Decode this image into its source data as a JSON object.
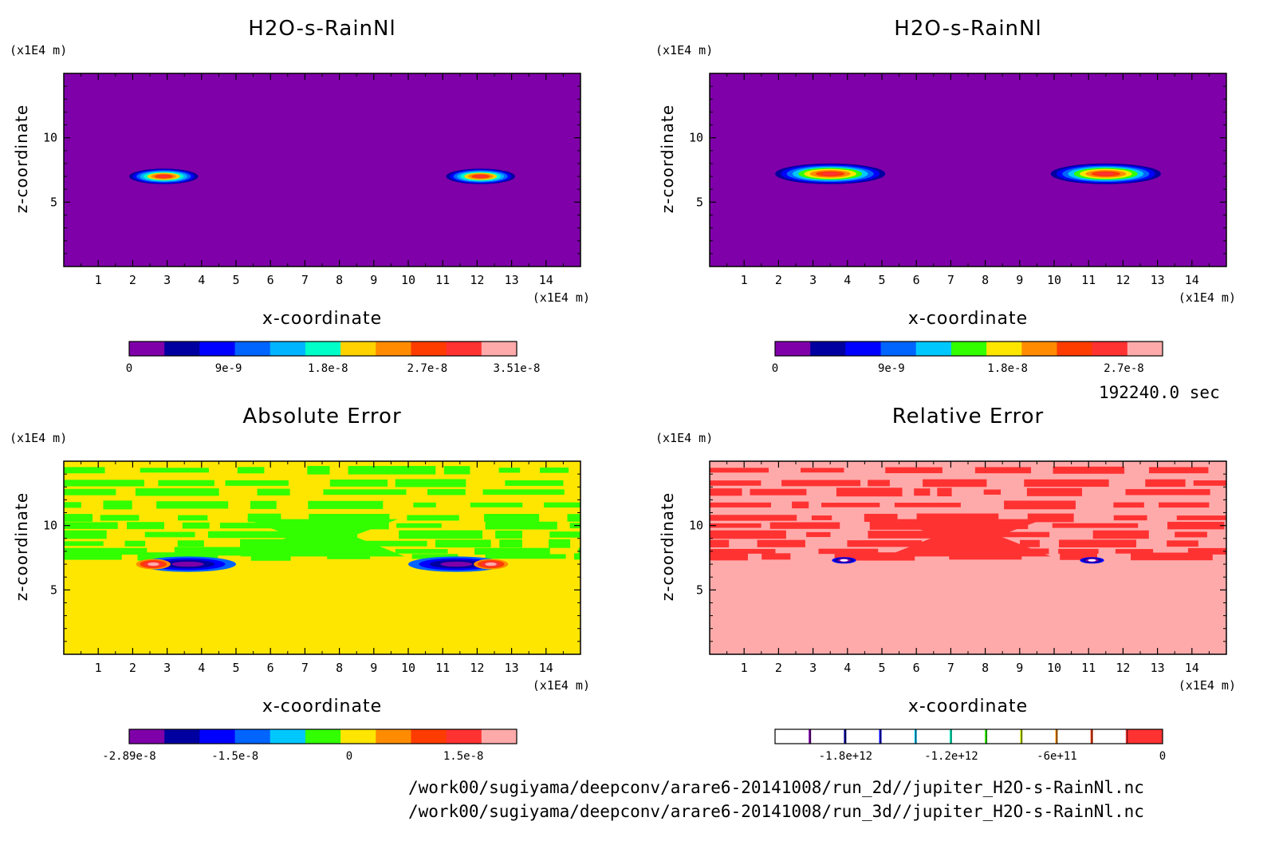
{
  "time_label": "192240.0 sec",
  "file_paths": [
    "/work00/sugiyama/deepconv/arare6-20141008/run_2d//jupiter_H2O-s-RainNl.nc",
    "/work00/sugiyama/deepconv/arare6-20141008/run_3d//jupiter_H2O-s-RainNl.nc"
  ],
  "chart_data": [
    {
      "type": "heatmap",
      "title": "H2O-s-RainNl",
      "xlabel": "x-coordinate",
      "ylabel": "z-coordinate",
      "x_unit": "(x1E4 m)",
      "y_unit": "(x1E4 m)",
      "xlim": [
        0,
        15
      ],
      "ylim": [
        0,
        15
      ],
      "x_ticks": [
        "1",
        "2",
        "3",
        "4",
        "5",
        "6",
        "7",
        "8",
        "9",
        "10",
        "11",
        "12",
        "13",
        "14"
      ],
      "y_ticks": [
        "5",
        "10"
      ],
      "background_color": "#7f00a9",
      "features": [
        {
          "x": 2.9,
          "z": 7.0,
          "half_width": 1.0,
          "depth": 0.6,
          "peak": 3.51e-08
        },
        {
          "x": 12.1,
          "z": 7.0,
          "half_width": 1.0,
          "depth": 0.6,
          "peak": 3.51e-08
        }
      ],
      "colorbar": {
        "colors": [
          "#7f00a9",
          "#0000a0",
          "#0000ff",
          "#0064ff",
          "#00b4ff",
          "#00ffc8",
          "#ffd200",
          "#ff8c00",
          "#ff3c00",
          "#ff3232",
          "#ffaaaa"
        ],
        "tick_labels": [
          "0",
          "9e-9",
          "1.8e-8",
          "2.7e-8",
          "3.51e-8"
        ],
        "range": [
          0,
          3.51e-08
        ]
      }
    },
    {
      "type": "heatmap",
      "title": "H2O-s-RainNl",
      "xlabel": "x-coordinate",
      "ylabel": "z-coordinate",
      "x_unit": "(x1E4 m)",
      "y_unit": "(x1E4 m)",
      "xlim": [
        0,
        15
      ],
      "ylim": [
        0,
        15
      ],
      "x_ticks": [
        "1",
        "2",
        "3",
        "4",
        "5",
        "6",
        "7",
        "8",
        "9",
        "10",
        "11",
        "12",
        "13",
        "14"
      ],
      "y_ticks": [
        "5",
        "10"
      ],
      "background_color": "#7f00a9",
      "features": [
        {
          "x": 3.5,
          "z": 7.2,
          "half_width": 1.6,
          "depth": 0.8,
          "peak": 2.9e-08
        },
        {
          "x": 11.5,
          "z": 7.2,
          "half_width": 1.6,
          "depth": 0.8,
          "peak": 2.9e-08
        }
      ],
      "colorbar": {
        "colors": [
          "#7f00a9",
          "#0000a0",
          "#0000ff",
          "#0064ff",
          "#00c8ff",
          "#32ff00",
          "#ffe600",
          "#ff8c00",
          "#ff3c00",
          "#ff3232",
          "#ffaaaa"
        ],
        "tick_labels": [
          "0",
          "9e-9",
          "1.8e-8",
          "2.7e-8"
        ],
        "range": [
          0,
          3e-08
        ]
      }
    },
    {
      "type": "heatmap",
      "title": "Absolute Error",
      "xlabel": "x-coordinate",
      "ylabel": "z-coordinate",
      "x_unit": "(x1E4 m)",
      "y_unit": "(x1E4 m)",
      "xlim": [
        0,
        15
      ],
      "ylim": [
        0,
        15
      ],
      "x_ticks": [
        "1",
        "2",
        "3",
        "4",
        "5",
        "6",
        "7",
        "8",
        "9",
        "10",
        "11",
        "12",
        "13",
        "14"
      ],
      "y_ticks": [
        "5",
        "10"
      ],
      "background_color": "#ffe600",
      "noise_color": "#32ff00",
      "features": [
        {
          "x": 3.6,
          "z": 7.0,
          "half_width": 1.4,
          "depth": 0.6,
          "sign": "neg"
        },
        {
          "x": 11.4,
          "z": 7.0,
          "half_width": 1.4,
          "depth": 0.6,
          "sign": "neg"
        },
        {
          "x": 2.6,
          "z": 7.0,
          "half_width": 0.5,
          "depth": 0.4,
          "sign": "pos"
        },
        {
          "x": 12.4,
          "z": 7.0,
          "half_width": 0.5,
          "depth": 0.4,
          "sign": "pos"
        }
      ],
      "colorbar": {
        "colors": [
          "#7f00a9",
          "#0000a0",
          "#0000ff",
          "#0064ff",
          "#00c8ff",
          "#32ff00",
          "#ffe600",
          "#ff8c00",
          "#ff3c00",
          "#ff3232",
          "#ffaaaa"
        ],
        "tick_labels": [
          "-2.89e-8",
          "-1.5e-8",
          "0",
          "1.5e-8"
        ],
        "range": [
          -2.89e-08,
          2.2e-08
        ]
      }
    },
    {
      "type": "heatmap",
      "title": "Relative Error",
      "xlabel": "x-coordinate",
      "ylabel": "z-coordinate",
      "x_unit": "(x1E4 m)",
      "y_unit": "(x1E4 m)",
      "xlim": [
        0,
        15
      ],
      "ylim": [
        0,
        15
      ],
      "x_ticks": [
        "1",
        "2",
        "3",
        "4",
        "5",
        "6",
        "7",
        "8",
        "9",
        "10",
        "11",
        "12",
        "13",
        "14"
      ],
      "y_ticks": [
        "5",
        "10"
      ],
      "background_color": "#ffaaaa",
      "noise_color": "#ff3232",
      "features": [
        {
          "x": 3.9,
          "z": 7.3,
          "half_width": 0.35,
          "depth": 0.25,
          "sign": "neg"
        },
        {
          "x": 11.1,
          "z": 7.3,
          "half_width": 0.35,
          "depth": 0.25,
          "sign": "neg"
        }
      ],
      "colorbar": {
        "colors": [
          "#ffffff",
          "#7f00a9",
          "#0000a0",
          "#0000ff",
          "#00c8ff",
          "#00ffc8",
          "#32ff00",
          "#c8e600",
          "#ff8c00",
          "#ff3c00",
          "#ff3232"
        ],
        "style": "lines",
        "tick_labels": [
          "-1.8e+12",
          "-1.2e+12",
          "-6e+11",
          "0"
        ],
        "range": [
          -2200000000000.0,
          0
        ]
      }
    }
  ]
}
